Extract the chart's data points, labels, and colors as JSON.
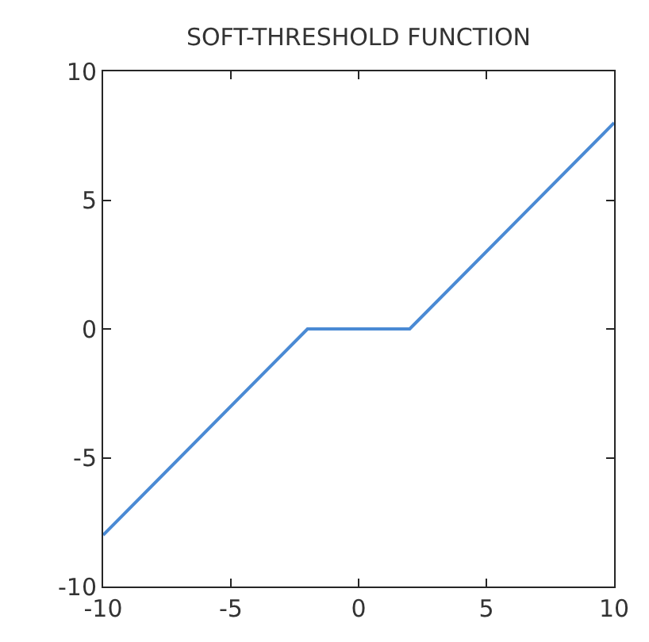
{
  "chart_data": {
    "type": "line",
    "title": "SOFT-THRESHOLD FUNCTION",
    "x": [
      -10,
      -2,
      2,
      10
    ],
    "series": [
      {
        "color": "#4a8ad4",
        "values": [
          -8,
          0,
          0,
          8
        ]
      }
    ],
    "xlim": [
      -10,
      10
    ],
    "ylim": [
      -10,
      10
    ],
    "xticks": [
      -10,
      -5,
      0,
      5,
      10
    ],
    "yticks": [
      -10,
      -5,
      0,
      5,
      10
    ],
    "marker": "none",
    "line_style": "solid"
  }
}
